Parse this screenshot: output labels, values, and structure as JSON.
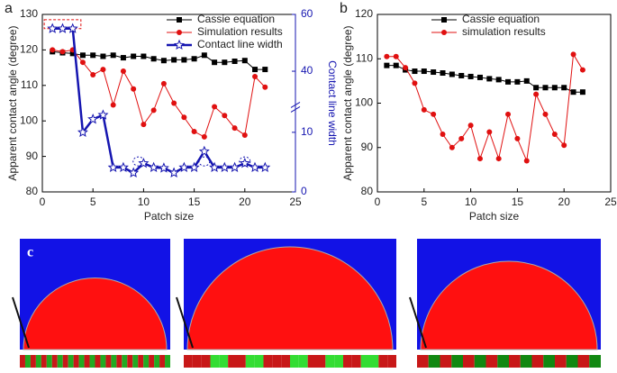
{
  "chart_data": [
    {
      "type": "line",
      "label": "a",
      "xlabel": "Patch size",
      "ylabel": "Apparent contact angle (degree)",
      "y2label": "Contact line width",
      "x": [
        1,
        2,
        3,
        4,
        5,
        6,
        7,
        8,
        9,
        10,
        11,
        12,
        13,
        14,
        15,
        16,
        17,
        18,
        19,
        20,
        21,
        22
      ],
      "xlim": [
        0,
        25
      ],
      "xticks": [
        0,
        5,
        10,
        15,
        20,
        25
      ],
      "ylim": [
        80,
        130
      ],
      "yticks": [
        80,
        90,
        100,
        110,
        120,
        130
      ],
      "y2lim": [
        0,
        60
      ],
      "y2ticks": [
        0,
        10,
        40,
        60
      ],
      "y2break": [
        14,
        30
      ],
      "y2color": "#1515b0",
      "legend": "upper right",
      "series": [
        {
          "name": "Cassie equation",
          "color": "#000000",
          "marker": "square",
          "values": [
            119.5,
            119.2,
            119,
            118.5,
            118.5,
            118.2,
            118.5,
            117.8,
            118.2,
            118.2,
            117.5,
            117,
            117.2,
            117.2,
            117.5,
            118.5,
            116.5,
            116.5,
            116.8,
            117,
            114.5,
            114.5
          ]
        },
        {
          "name": "Simulation results",
          "color": "#e01010",
          "marker": "circle",
          "values": [
            120,
            119.5,
            120,
            116.5,
            113,
            114.5,
            104.5,
            114,
            109,
            99,
            103,
            110.5,
            105,
            101,
            97,
            95.5,
            104,
            101.5,
            98,
            96,
            112.5,
            109.5
          ]
        },
        {
          "name": "Contact line width",
          "color": "#1515b0",
          "marker": "star",
          "axis": "y2",
          "values": [
            55,
            55,
            55,
            10,
            12.2,
            12.9,
            4.1,
            4.1,
            3.2,
            4.8,
            4.1,
            4,
            3.2,
            4.1,
            4.1,
            6.8,
            4.1,
            4.1,
            4.1,
            4.8,
            4.1,
            4.1
          ]
        }
      ]
    },
    {
      "type": "line",
      "label": "b",
      "xlabel": "Patch size",
      "ylabel": "Apparent contact angle (degree)",
      "x": [
        1,
        2,
        3,
        4,
        5,
        6,
        7,
        8,
        9,
        10,
        11,
        12,
        13,
        14,
        15,
        16,
        17,
        18,
        19,
        20,
        21,
        22
      ],
      "xlim": [
        0,
        25
      ],
      "xticks": [
        0,
        5,
        10,
        15,
        20,
        25
      ],
      "ylim": [
        80,
        120
      ],
      "yticks": [
        80,
        90,
        100,
        110,
        120
      ],
      "legend": "upper right",
      "series": [
        {
          "name": "Cassie equation",
          "color": "#000000",
          "marker": "square",
          "values": [
            108.5,
            108.5,
            107.5,
            107.2,
            107.2,
            107,
            106.8,
            106.5,
            106.2,
            106,
            105.8,
            105.5,
            105.3,
            104.8,
            104.8,
            105,
            103.5,
            103.5,
            103.5,
            103.5,
            102.5,
            102.5
          ]
        },
        {
          "name": "simulation results",
          "color": "#e01010",
          "marker": "circle",
          "values": [
            110.5,
            110.5,
            108,
            104.5,
            98.5,
            97.5,
            93,
            90,
            92,
            95,
            87.5,
            93.5,
            87.5,
            97.5,
            92,
            87,
            102,
            97.5,
            93,
            90.5,
            111,
            107.5
          ]
        }
      ]
    }
  ],
  "images": {
    "label": "c"
  }
}
